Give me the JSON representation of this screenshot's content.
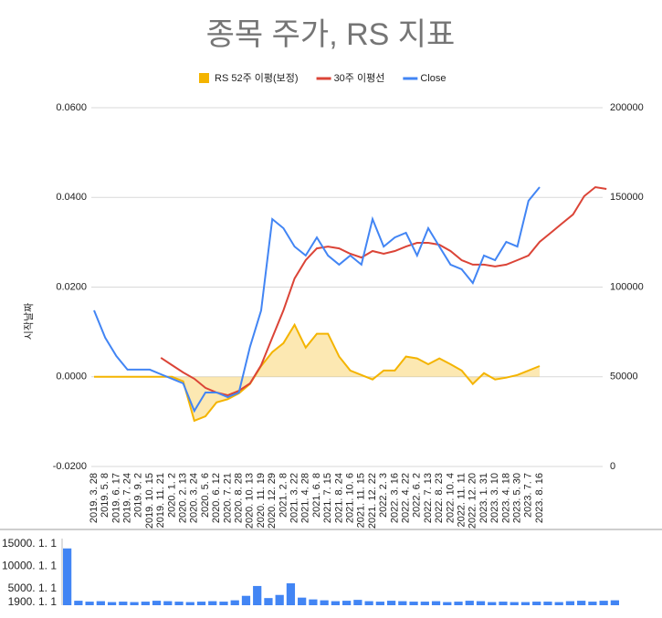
{
  "chart_data": [
    {
      "type": "combo",
      "title": "종목 주가, RS 지표",
      "y_label": "시작날짜",
      "categories": [
        "2019. 3. 28",
        "2019. 5. 8",
        "2019. 6. 17",
        "2019. 7. 24",
        "2019. 9. 2",
        "2019. 10. 15",
        "2019. 11. 21",
        "2020. 1. 2",
        "2020. 2. 13",
        "2020. 3. 24",
        "2020. 5. 6",
        "2020. 6. 12",
        "2020. 7. 21",
        "2020. 8. 28",
        "2020. 10. 13",
        "2020. 11. 19",
        "2020. 12. 29",
        "2021. 2. 8",
        "2021. 3. 22",
        "2021. 4. 28",
        "2021. 6. 8",
        "2021. 7. 15",
        "2021. 8. 24",
        "2021. 10. 6",
        "2021. 11. 15",
        "2021. 12. 22",
        "2022. 2. 3",
        "2022. 3. 16",
        "2022. 4. 22",
        "2022. 6. 2",
        "2022. 7. 13",
        "2022. 8. 23",
        "2022. 10. 4",
        "2022. 11. 11",
        "2022. 12. 20",
        "2023. 1. 31",
        "2023. 3. 10",
        "2023. 4. 18",
        "2023. 5. 30",
        "2023. 7. 7",
        "2023. 8. 16",
        null,
        null,
        null,
        null,
        null,
        null
      ],
      "series": [
        {
          "name": "RS 52주 이평(보정)",
          "color": "#f4b400",
          "kind": "area",
          "axis": "y",
          "values": [
            0,
            0,
            0,
            0,
            0,
            0,
            0,
            0,
            -0.001,
            -0.0098,
            -0.0088,
            -0.0057,
            -0.005,
            -0.0037,
            -0.0016,
            0.0024,
            0.0055,
            0.0075,
            0.0116,
            0.0065,
            0.0096,
            0.0096,
            0.0045,
            0.0014,
            0.0004,
            -0.0006,
            0.0014,
            0.0014,
            0.0045,
            0.0041,
            0.0028,
            0.0041,
            0.0028,
            0.0014,
            -0.0016,
            0.0008,
            -0.0006,
            -0.0002,
            0.0004,
            0.0014,
            0.0024,
            null,
            null,
            null,
            null,
            null,
            null
          ]
        },
        {
          "name": "30주 이평선",
          "color": "#db4437",
          "kind": "line",
          "axis": "y2",
          "values": [
            null,
            null,
            null,
            null,
            null,
            null,
            60600,
            56500,
            52400,
            48900,
            43800,
            41200,
            39700,
            42200,
            46300,
            56500,
            71800,
            87000,
            104800,
            115000,
            121600,
            122600,
            121600,
            118600,
            116500,
            120100,
            118600,
            120100,
            122600,
            124700,
            124700,
            123600,
            120100,
            115000,
            112500,
            112500,
            111500,
            112500,
            115000,
            117600,
            125200,
            130300,
            135400,
            140500,
            150700,
            155700,
            154700
          ]
        },
        {
          "name": "Close",
          "color": "#4285f4",
          "kind": "line",
          "axis": "y2",
          "values": [
            87000,
            71800,
            61600,
            54000,
            54000,
            54000,
            51400,
            48900,
            46300,
            31000,
            41200,
            41200,
            38700,
            41200,
            66700,
            87000,
            137900,
            132800,
            122600,
            117600,
            127700,
            117600,
            112500,
            117600,
            112500,
            137900,
            122600,
            127700,
            130300,
            117600,
            132800,
            122600,
            112500,
            109900,
            102300,
            117600,
            115000,
            125200,
            122600,
            148100,
            155700,
            null,
            null,
            null,
            null,
            null,
            null
          ]
        }
      ],
      "ylim": [
        -0.02,
        0.06
      ],
      "yticks": [
        {
          "value": 0.06,
          "label": "0.0600"
        },
        {
          "value": 0.04,
          "label": "0.0400"
        },
        {
          "value": 0.02,
          "label": "0.0200"
        },
        {
          "value": 0,
          "label": "0.0000"
        },
        {
          "value": -0.02,
          "label": "-0.0200"
        }
      ],
      "y2lim": [
        0,
        200000
      ],
      "y2ticks": [
        200000,
        150000,
        100000,
        50000,
        0
      ],
      "grid": true,
      "legend": "top"
    },
    {
      "type": "bar",
      "color": "#4285f4",
      "values": [
        14000,
        2300,
        2100,
        2200,
        2000,
        2100,
        2000,
        2100,
        2300,
        2200,
        2100,
        2000,
        2100,
        2200,
        2100,
        2400,
        3400,
        5600,
        2900,
        3600,
        6200,
        3000,
        2600,
        2400,
        2200,
        2300,
        2500,
        2200,
        2100,
        2300,
        2200,
        2100,
        2100,
        2200,
        2000,
        2100,
        2300,
        2200,
        2000,
        2100,
        2000,
        2000,
        2100,
        2100,
        2000,
        2200,
        2300,
        2100,
        2300,
        2400
      ],
      "ylim": [
        1300,
        16200
      ],
      "yticks": [
        {
          "value": 15000,
          "label": "15000. 1. 1"
        },
        {
          "value": 10000,
          "label": "10000. 1. 1"
        },
        {
          "value": 5000,
          "label": "5000. 1. 1"
        },
        {
          "value": 1900,
          "label": "1900. 1. 1"
        }
      ]
    }
  ]
}
